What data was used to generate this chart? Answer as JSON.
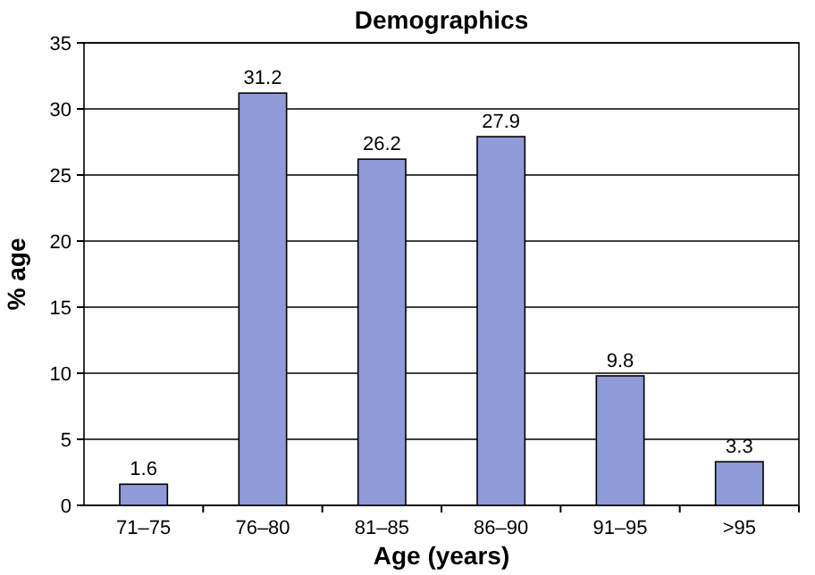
{
  "chart_data": {
    "type": "bar",
    "title": "Demographics",
    "xlabel": "Age (years)",
    "ylabel": "% age",
    "categories": [
      "71–75",
      "76–80",
      "81–85",
      "86–90",
      "91–95",
      ">95"
    ],
    "values": [
      1.6,
      31.2,
      26.2,
      27.9,
      9.8,
      3.3
    ],
    "color": "#8f9bd8",
    "ylim": [
      0,
      35
    ],
    "yticks": [
      0,
      5,
      10,
      15,
      20,
      25,
      30,
      35
    ],
    "grid": "y",
    "data_labels": true
  }
}
